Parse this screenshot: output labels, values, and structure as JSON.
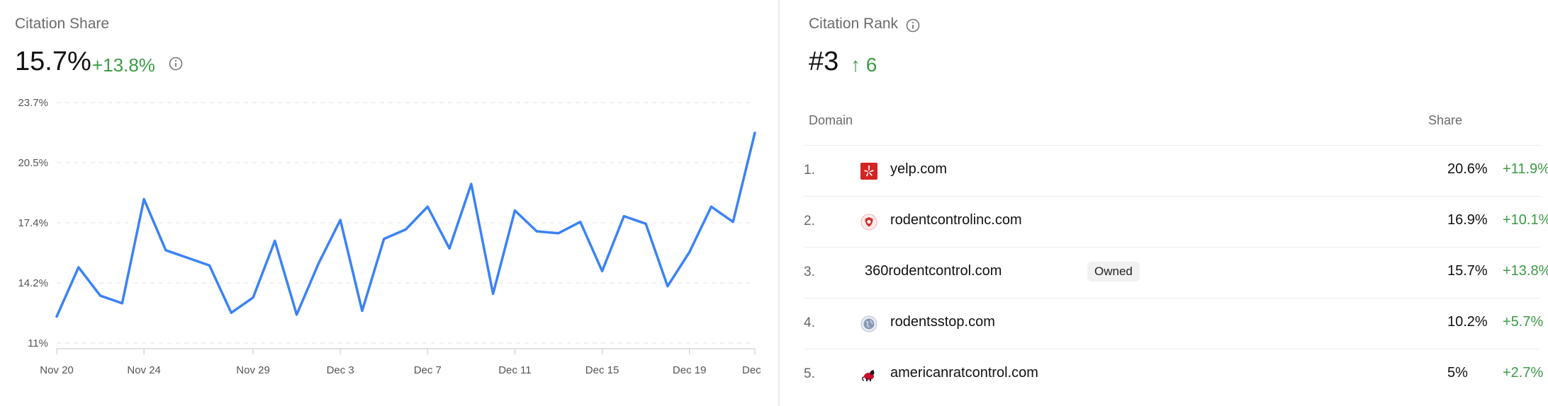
{
  "citation_share": {
    "title": "Citation Share",
    "value": "15.7%",
    "delta": "+13.8%",
    "accent_color": "#3b82f6",
    "delta_color": "#3d9a46"
  },
  "chart_data": {
    "type": "line",
    "y_ticks": [
      "23.7%",
      "20.5%",
      "17.4%",
      "14.2%",
      "11%"
    ],
    "ylim": [
      11,
      23.7
    ],
    "x_ticks": [
      "Nov 20",
      "Nov 24",
      "Nov 29",
      "Dec 3",
      "Dec 7",
      "Dec 11",
      "Dec 15",
      "Dec 19",
      "Dec"
    ],
    "x_range": [
      "2024-11-20",
      "2024-12-22"
    ],
    "grid": true,
    "series": [
      {
        "color": "#3b82f6",
        "x": [
          "2024-11-20",
          "2024-11-21",
          "2024-11-22",
          "2024-11-23",
          "2024-11-24",
          "2024-11-25",
          "2024-11-27",
          "2024-11-28",
          "2024-11-29",
          "2024-11-30",
          "2024-12-01",
          "2024-12-02",
          "2024-12-03",
          "2024-12-04",
          "2024-12-05",
          "2024-12-06",
          "2024-12-07",
          "2024-12-08",
          "2024-12-09",
          "2024-12-10",
          "2024-12-11",
          "2024-12-12",
          "2024-12-13",
          "2024-12-14",
          "2024-12-15",
          "2024-12-16",
          "2024-12-17",
          "2024-12-18",
          "2024-12-19",
          "2024-12-20",
          "2024-12-21",
          "2024-12-22"
        ],
        "values": [
          12.4,
          15.0,
          13.5,
          13.1,
          18.6,
          15.9,
          15.1,
          12.6,
          13.4,
          16.4,
          12.5,
          15.2,
          17.5,
          12.7,
          16.5,
          17.0,
          18.2,
          16.0,
          19.4,
          13.6,
          18.0,
          16.9,
          16.8,
          17.4,
          14.8,
          17.7,
          17.3,
          14.0,
          15.8,
          18.2,
          17.4,
          22.1
        ]
      }
    ]
  },
  "citation_rank": {
    "title": "Citation Rank",
    "value": "#3",
    "delta": "6",
    "delta_arrow": "↑",
    "columns": {
      "domain": "Domain",
      "share": "Share"
    },
    "rows": [
      {
        "rank": "1.",
        "domain": "yelp.com",
        "share": "20.6%",
        "delta": "+11.9%",
        "icon": "yelp-icon"
      },
      {
        "rank": "2.",
        "domain": "rodentcontrolinc.com",
        "share": "16.9%",
        "delta": "+10.1%",
        "icon": "shield-icon"
      },
      {
        "rank": "3.",
        "domain": "360rodentcontrol.com",
        "badge": "Owned",
        "share": "15.7%",
        "delta": "+13.8%",
        "icon": ""
      },
      {
        "rank": "4.",
        "domain": "rodentsstop.com",
        "share": "10.2%",
        "delta": "+5.7%",
        "icon": "globe-icon"
      },
      {
        "rank": "5.",
        "domain": "americanratcontrol.com",
        "share": "5%",
        "delta": "+2.7%",
        "icon": "rat-logo-icon"
      }
    ]
  }
}
